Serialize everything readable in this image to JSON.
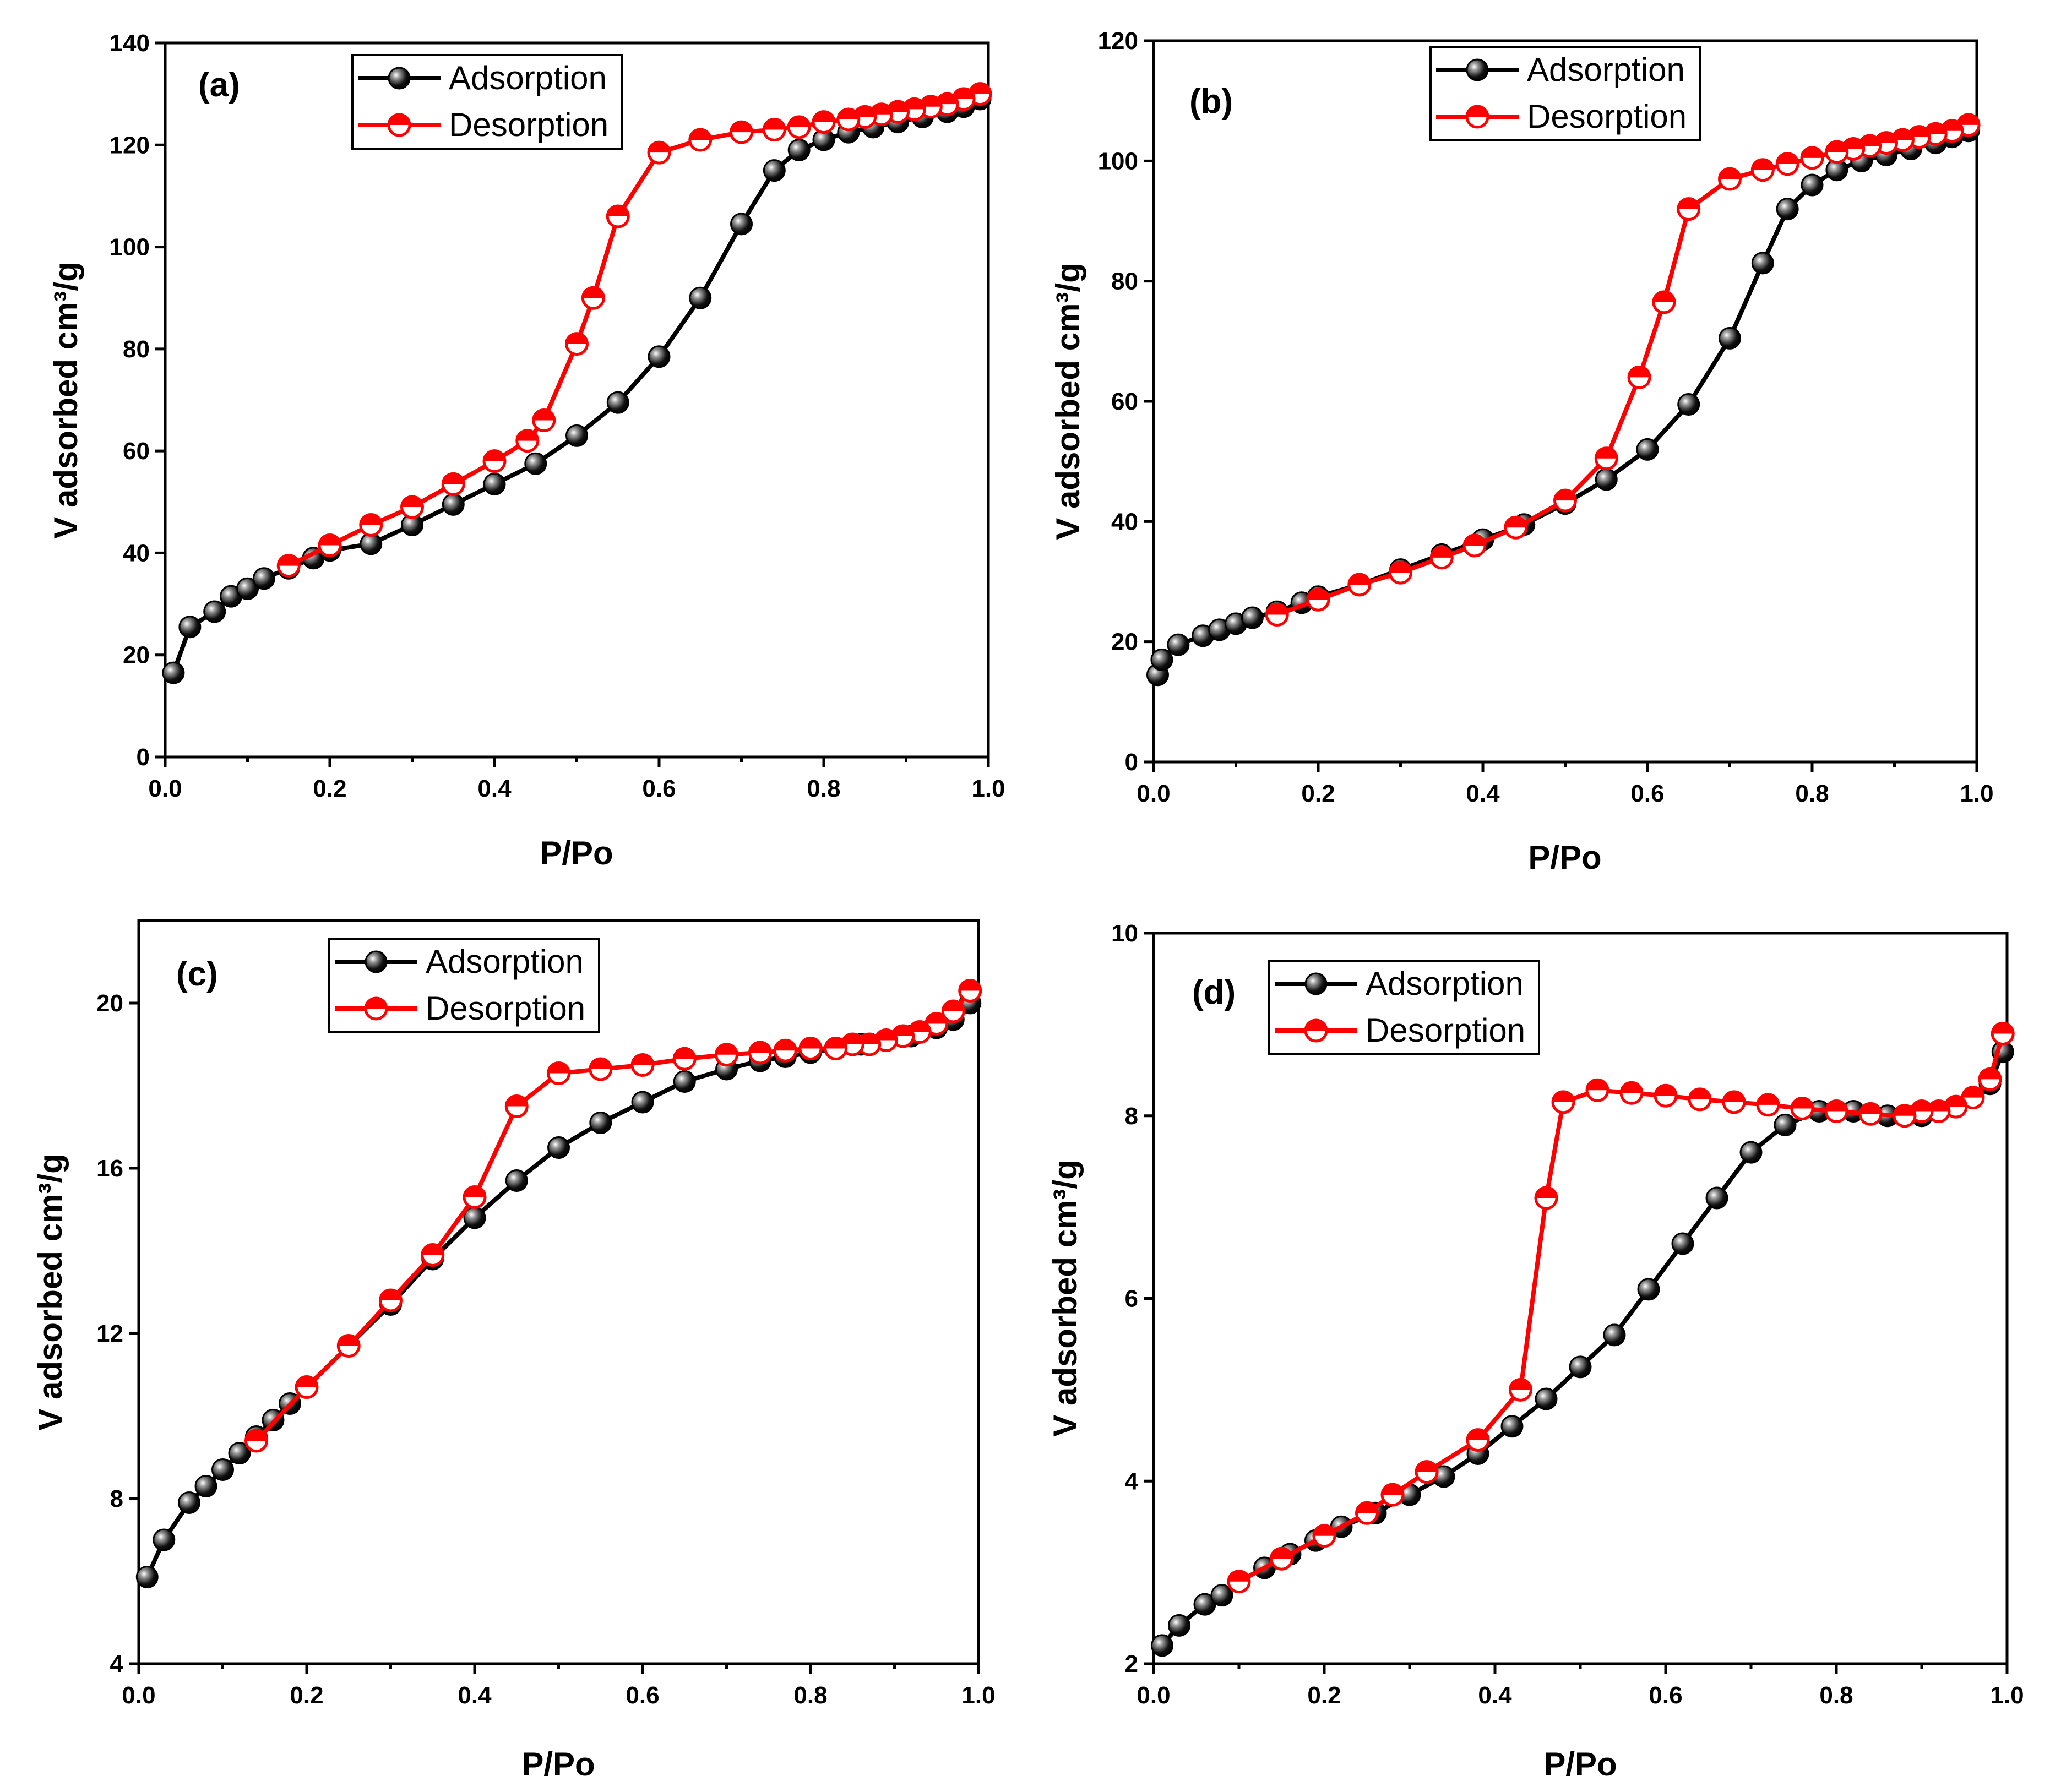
{
  "chart_data": [
    {
      "panel": "(a)",
      "type": "line",
      "xlabel": "P/Po",
      "ylabel": "V adsorbed cm³/g",
      "xlim": [
        0.0,
        1.0
      ],
      "ylim": [
        0,
        140
      ],
      "xticks": [
        "0.0",
        "0.2",
        "0.4",
        "0.6",
        "0.8",
        "1.0"
      ],
      "yticks": [
        "0",
        "20",
        "40",
        "60",
        "80",
        "100",
        "120",
        "140"
      ],
      "legend": [
        "Adsorption",
        "Desorption"
      ],
      "series": [
        {
          "name": "Adsorption",
          "color": "#000000",
          "x": [
            0.01,
            0.03,
            0.06,
            0.08,
            0.1,
            0.12,
            0.15,
            0.18,
            0.2,
            0.25,
            0.3,
            0.35,
            0.4,
            0.45,
            0.5,
            0.55,
            0.6,
            0.65,
            0.7,
            0.74,
            0.77,
            0.8,
            0.83,
            0.86,
            0.89,
            0.92,
            0.95,
            0.97,
            0.99
          ],
          "y": [
            16.5,
            25.5,
            28.5,
            31.5,
            33,
            35,
            37,
            39,
            40.5,
            41.8,
            45.5,
            49.5,
            53.5,
            57.5,
            63,
            69.5,
            78.5,
            90,
            104.5,
            115,
            119,
            121,
            122.5,
            123.5,
            124.5,
            125.5,
            126.5,
            127.5,
            129
          ]
        },
        {
          "name": "Desorption",
          "color": "#ff0000",
          "x": [
            0.99,
            0.97,
            0.95,
            0.93,
            0.91,
            0.89,
            0.87,
            0.85,
            0.83,
            0.8,
            0.77,
            0.74,
            0.7,
            0.65,
            0.6,
            0.55,
            0.52,
            0.5,
            0.46,
            0.44,
            0.4,
            0.35,
            0.3,
            0.25,
            0.2,
            0.15
          ],
          "y": [
            130,
            129,
            128,
            127.5,
            127,
            126.5,
            126,
            125.5,
            125,
            124.5,
            123.5,
            123,
            122.5,
            121,
            118.5,
            106,
            90,
            81,
            66,
            62,
            58,
            53.5,
            49,
            45.5,
            41.5,
            37.5
          ]
        }
      ]
    },
    {
      "panel": "(b)",
      "type": "line",
      "xlabel": "P/Po",
      "ylabel": "V adsorbed cm³/g",
      "xlim": [
        0.0,
        1.0
      ],
      "ylim": [
        0,
        120
      ],
      "xticks": [
        "0.0",
        "0.2",
        "0.4",
        "0.6",
        "0.8",
        "1.0"
      ],
      "yticks": [
        "0",
        "20",
        "40",
        "60",
        "80",
        "100",
        "120"
      ],
      "legend": [
        "Adsorption",
        "Desorption"
      ],
      "series": [
        {
          "name": "Adsorption",
          "color": "#000000",
          "x": [
            0.005,
            0.01,
            0.03,
            0.06,
            0.08,
            0.1,
            0.12,
            0.15,
            0.18,
            0.2,
            0.25,
            0.3,
            0.35,
            0.4,
            0.45,
            0.5,
            0.55,
            0.6,
            0.65,
            0.7,
            0.74,
            0.77,
            0.8,
            0.83,
            0.86,
            0.89,
            0.92,
            0.95,
            0.97,
            0.99
          ],
          "y": [
            14.5,
            17,
            19.5,
            21,
            22,
            23,
            24,
            25,
            26.5,
            27.5,
            29.5,
            32,
            34.5,
            37,
            39.5,
            43,
            47,
            52,
            59.5,
            70.5,
            83,
            92,
            96,
            98.5,
            100,
            101,
            102,
            103,
            104,
            105
          ]
        },
        {
          "name": "Desorption",
          "color": "#ff0000",
          "x": [
            0.99,
            0.97,
            0.95,
            0.93,
            0.91,
            0.89,
            0.87,
            0.85,
            0.83,
            0.8,
            0.77,
            0.74,
            0.7,
            0.65,
            0.62,
            0.59,
            0.55,
            0.5,
            0.44,
            0.39,
            0.35,
            0.3,
            0.25,
            0.2,
            0.15
          ],
          "y": [
            106,
            105,
            104.5,
            104,
            103.5,
            103,
            102.5,
            102,
            101.5,
            100.5,
            99.5,
            98.5,
            97,
            92,
            76.5,
            64,
            50.5,
            43.5,
            39,
            36,
            34,
            31.5,
            29.5,
            27,
            24.5
          ]
        }
      ]
    },
    {
      "panel": "(c)",
      "type": "line",
      "xlabel": "P/Po",
      "ylabel": "V adsorbed cm³/g",
      "xlim": [
        0.0,
        1.0
      ],
      "ylim": [
        4,
        22
      ],
      "xticks": [
        "0.0",
        "0.2",
        "0.4",
        "0.6",
        "0.8",
        "1.0"
      ],
      "yticks": [
        "4",
        "8",
        "12",
        "16",
        "20"
      ],
      "legend": [
        "Adsorption",
        "Desorption"
      ],
      "series": [
        {
          "name": "Adsorption",
          "color": "#000000",
          "x": [
            0.01,
            0.03,
            0.06,
            0.08,
            0.1,
            0.12,
            0.14,
            0.16,
            0.18,
            0.2,
            0.25,
            0.3,
            0.35,
            0.4,
            0.45,
            0.5,
            0.55,
            0.6,
            0.65,
            0.7,
            0.74,
            0.77,
            0.8,
            0.83,
            0.86,
            0.89,
            0.92,
            0.95,
            0.97,
            0.99
          ],
          "y": [
            6.1,
            7.0,
            7.9,
            8.3,
            8.7,
            9.1,
            9.5,
            9.9,
            10.3,
            10.7,
            11.7,
            12.7,
            13.8,
            14.8,
            15.7,
            16.5,
            17.1,
            17.6,
            18.1,
            18.4,
            18.6,
            18.7,
            18.8,
            18.9,
            19.0,
            19.1,
            19.2,
            19.4,
            19.6,
            20.0
          ]
        },
        {
          "name": "Desorption",
          "color": "#ff0000",
          "x": [
            0.99,
            0.97,
            0.95,
            0.93,
            0.91,
            0.89,
            0.87,
            0.85,
            0.83,
            0.8,
            0.77,
            0.74,
            0.7,
            0.65,
            0.6,
            0.55,
            0.5,
            0.45,
            0.4,
            0.35,
            0.3,
            0.25,
            0.2,
            0.14
          ],
          "y": [
            20.3,
            19.8,
            19.5,
            19.3,
            19.2,
            19.1,
            19.0,
            19.0,
            18.9,
            18.9,
            18.85,
            18.8,
            18.75,
            18.65,
            18.5,
            18.4,
            18.3,
            17.5,
            15.3,
            13.9,
            12.8,
            11.7,
            10.7,
            9.4
          ]
        }
      ]
    },
    {
      "panel": "(d)",
      "type": "line",
      "xlabel": "P/Po",
      "ylabel": "V adsorbed cm³/g",
      "xlim": [
        0.0,
        1.0
      ],
      "ylim": [
        2,
        10
      ],
      "xticks": [
        "0.0",
        "0.2",
        "0.4",
        "0.6",
        "0.8",
        "1.0"
      ],
      "yticks": [
        "2",
        "4",
        "6",
        "8",
        "10"
      ],
      "legend": [
        "Adsorption",
        "Desorption"
      ],
      "series": [
        {
          "name": "Adsorption",
          "color": "#000000",
          "x": [
            0.01,
            0.03,
            0.06,
            0.08,
            0.1,
            0.13,
            0.16,
            0.19,
            0.22,
            0.26,
            0.3,
            0.34,
            0.38,
            0.42,
            0.46,
            0.5,
            0.54,
            0.58,
            0.62,
            0.66,
            0.7,
            0.74,
            0.78,
            0.82,
            0.86,
            0.88,
            0.9,
            0.92,
            0.94,
            0.96,
            0.98,
            0.995
          ],
          "y": [
            2.2,
            2.42,
            2.65,
            2.75,
            2.9,
            3.05,
            3.2,
            3.35,
            3.5,
            3.65,
            3.85,
            4.05,
            4.3,
            4.6,
            4.9,
            5.25,
            5.6,
            6.1,
            6.6,
            7.1,
            7.6,
            7.9,
            8.05,
            8.05,
            8.0,
            8.0,
            8.0,
            8.05,
            8.1,
            8.2,
            8.35,
            8.7
          ]
        },
        {
          "name": "Desorption",
          "color": "#ff0000",
          "x": [
            0.995,
            0.98,
            0.96,
            0.94,
            0.92,
            0.9,
            0.88,
            0.84,
            0.8,
            0.76,
            0.72,
            0.68,
            0.64,
            0.6,
            0.56,
            0.52,
            0.48,
            0.46,
            0.43,
            0.38,
            0.32,
            0.28,
            0.25,
            0.2,
            0.15,
            0.1
          ],
          "y": [
            8.9,
            8.4,
            8.2,
            8.1,
            8.05,
            8.05,
            8.0,
            8.02,
            8.05,
            8.08,
            8.12,
            8.15,
            8.18,
            8.22,
            8.25,
            8.28,
            8.15,
            7.1,
            5.0,
            4.45,
            4.1,
            3.85,
            3.65,
            3.4,
            3.15,
            2.9
          ]
        }
      ]
    }
  ]
}
